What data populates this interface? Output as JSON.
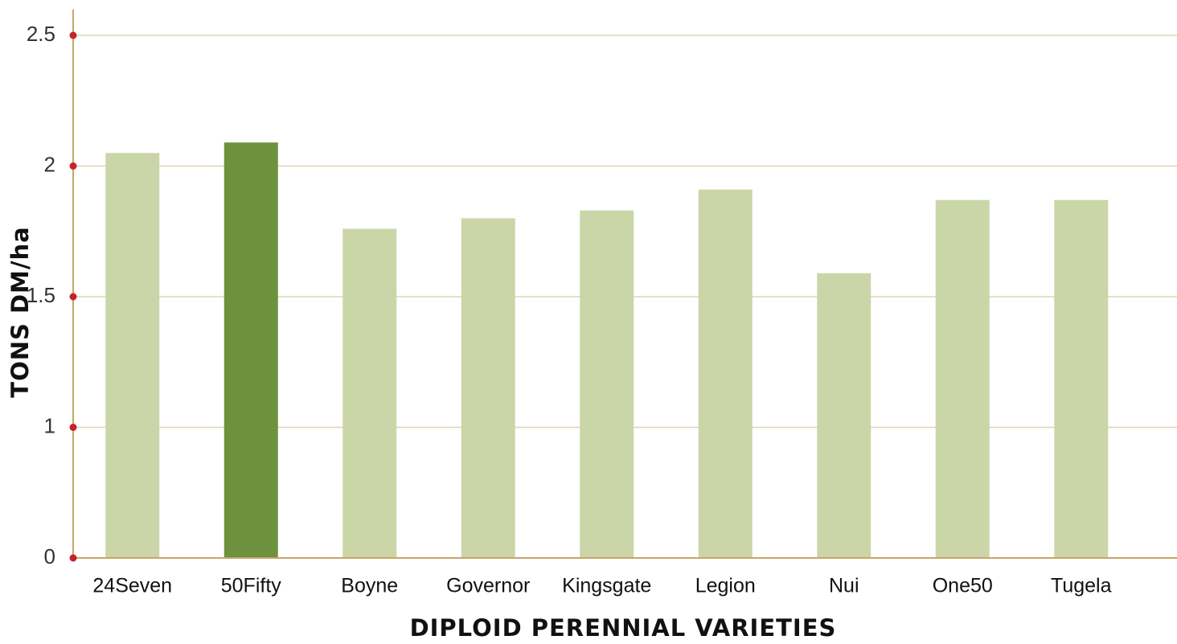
{
  "chart_data": {
    "type": "bar",
    "categories": [
      "24Seven",
      "50Fifty",
      "Boyne",
      "Governor",
      "Kingsgate",
      "Legion",
      "Nui",
      "One50",
      "Tugela"
    ],
    "values": [
      2.05,
      2.09,
      1.76,
      1.8,
      1.83,
      1.91,
      1.59,
      1.87,
      1.87
    ],
    "colors": [
      "#cbd6a8",
      "#6d913c",
      "#cbd6a8",
      "#cbd6a8",
      "#cbd6a8",
      "#cbd6a8",
      "#cbd6a8",
      "#cbd6a8",
      "#cbd6a8"
    ],
    "xlabel": "DIPLOID PERENNIAL VARIETIES",
    "ylabel": "TONS DM/ha",
    "ylim": [
      0,
      2.5
    ],
    "yticks": [
      0,
      1,
      1.5,
      2,
      2.5
    ],
    "grid": true
  }
}
